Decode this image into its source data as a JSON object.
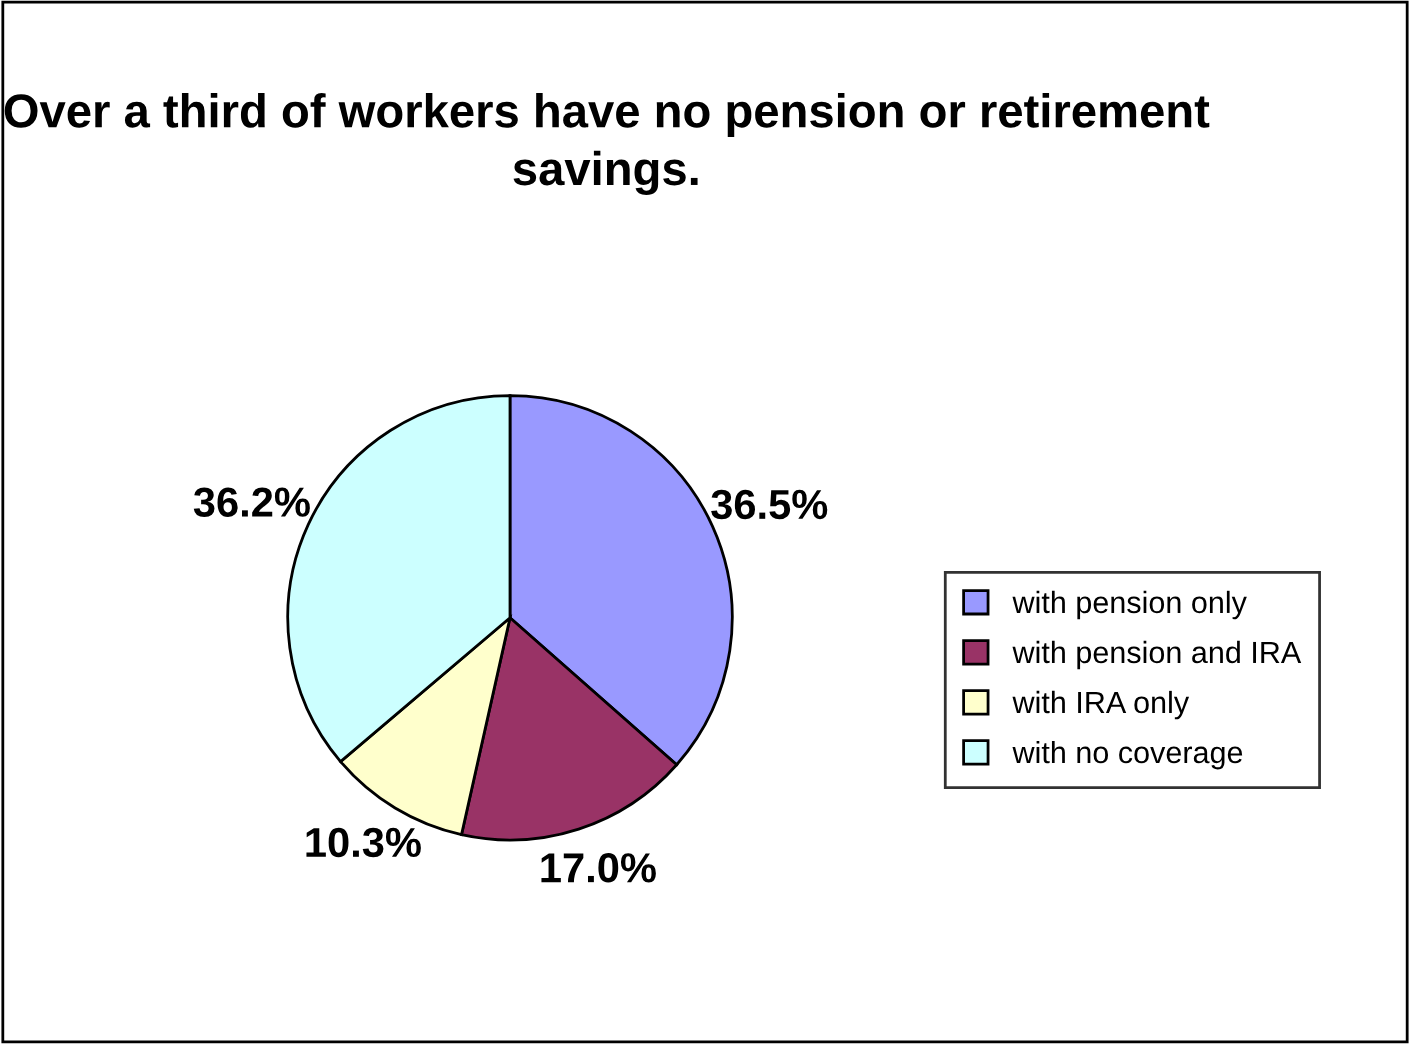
{
  "chart_data": {
    "type": "pie",
    "title": "Over a third of workers have no pension or retirement savings.",
    "categories": [
      "with pension only",
      "with pension and IRA",
      "with IRA only",
      "with no coverage"
    ],
    "values": [
      36.5,
      17.0,
      10.3,
      36.2
    ],
    "colors": [
      "#9999ff",
      "#993366",
      "#ffffcc",
      "#ccffff"
    ],
    "value_labels": [
      "36.5%",
      "17.0%",
      "10.3%",
      "36.2%"
    ],
    "legend": "right"
  }
}
